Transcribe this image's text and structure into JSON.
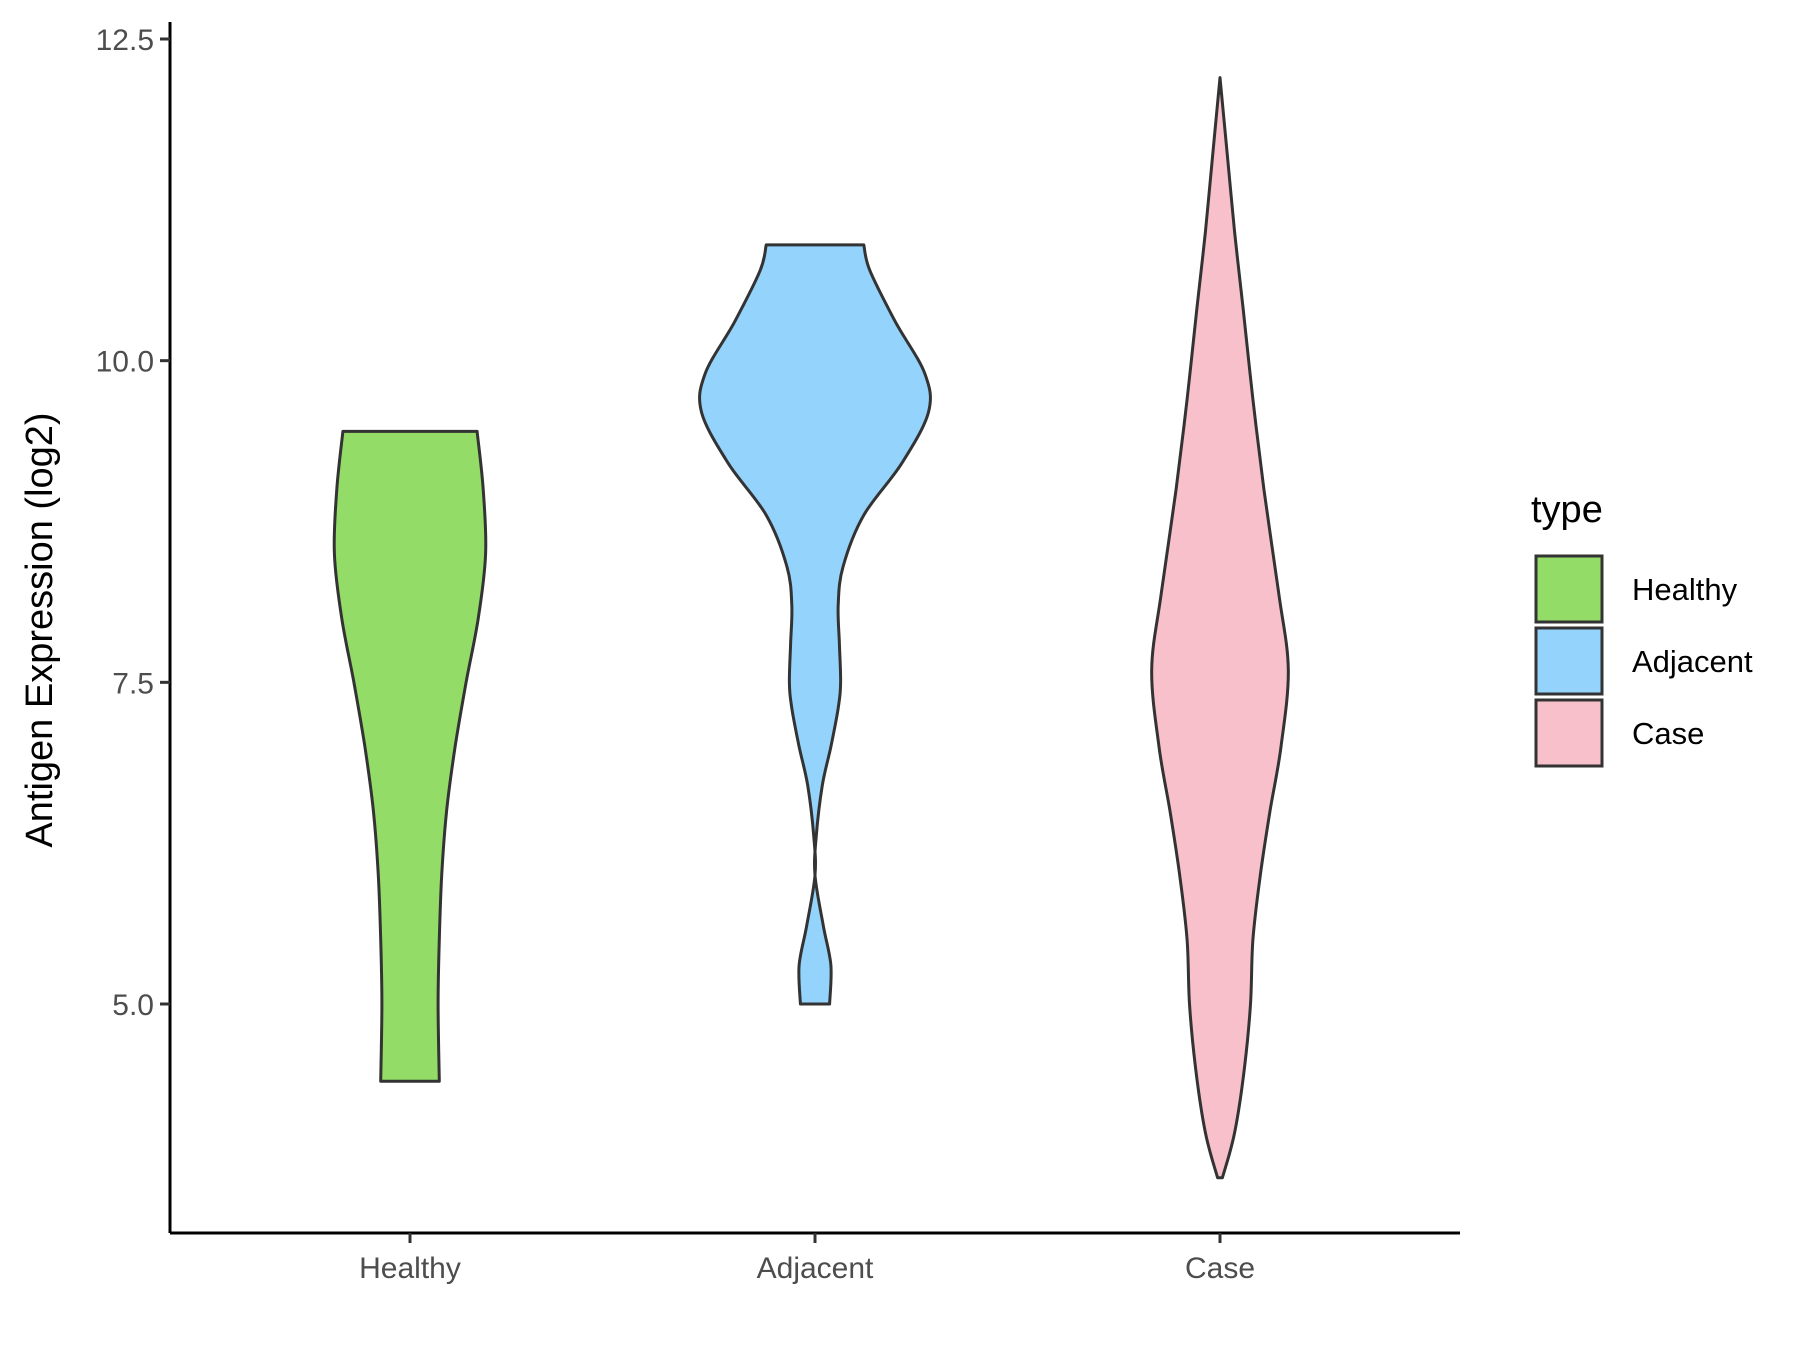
{
  "chart_data": {
    "type": "violin",
    "title": "",
    "xlabel": "",
    "ylabel": "Antigen Expression (log2)",
    "ylim": [
      3.3,
      12.7
    ],
    "yticks": [
      {
        "value": 5.0,
        "label": "5.0"
      },
      {
        "value": 7.5,
        "label": "7.5"
      },
      {
        "value": 10.0,
        "label": "10.0"
      },
      {
        "value": 12.5,
        "label": "12.5"
      }
    ],
    "categories": [
      "Healthy",
      "Adjacent",
      "Case"
    ],
    "grid": false,
    "legend": {
      "title": "type",
      "placement": "right",
      "entries": [
        {
          "label": "Healthy",
          "color": "#93dc67"
        },
        {
          "label": "Adjacent",
          "color": "#93d3fc"
        },
        {
          "label": "Case",
          "color": "#f8c0cb"
        }
      ]
    },
    "outline_color": "#333333",
    "series": [
      {
        "category": "Healthy",
        "color": "#93dc67",
        "min": 4.4,
        "max": 9.45,
        "profile": [
          [
            4.4,
            0.24
          ],
          [
            5.0,
            0.23
          ],
          [
            5.5,
            0.24
          ],
          [
            6.0,
            0.26
          ],
          [
            6.5,
            0.3
          ],
          [
            7.0,
            0.37
          ],
          [
            7.5,
            0.46
          ],
          [
            8.0,
            0.56
          ],
          [
            8.5,
            0.62
          ],
          [
            9.0,
            0.6
          ],
          [
            9.45,
            0.55
          ]
        ]
      },
      {
        "category": "Adjacent",
        "color": "#93d3fc",
        "min": 5.0,
        "max": 10.9,
        "profile": [
          [
            5.0,
            0.12
          ],
          [
            5.3,
            0.13
          ],
          [
            5.6,
            0.07
          ],
          [
            6.0,
            0.0
          ],
          [
            6.3,
            0.01
          ],
          [
            6.7,
            0.06
          ],
          [
            7.0,
            0.13
          ],
          [
            7.3,
            0.19
          ],
          [
            7.5,
            0.21
          ],
          [
            7.8,
            0.2
          ],
          [
            8.1,
            0.19
          ],
          [
            8.4,
            0.23
          ],
          [
            8.8,
            0.4
          ],
          [
            9.2,
            0.71
          ],
          [
            9.6,
            0.93
          ],
          [
            9.9,
            0.9
          ],
          [
            10.3,
            0.66
          ],
          [
            10.7,
            0.45
          ],
          [
            10.9,
            0.4
          ]
        ]
      },
      {
        "category": "Case",
        "color": "#f8c0cb",
        "min": 3.65,
        "max": 12.2,
        "profile": [
          [
            3.65,
            0.02
          ],
          [
            4.0,
            0.12
          ],
          [
            4.5,
            0.2
          ],
          [
            5.0,
            0.25
          ],
          [
            5.5,
            0.27
          ],
          [
            6.0,
            0.33
          ],
          [
            6.5,
            0.41
          ],
          [
            7.0,
            0.5
          ],
          [
            7.6,
            0.56
          ],
          [
            8.2,
            0.48
          ],
          [
            9.0,
            0.36
          ],
          [
            9.7,
            0.27
          ],
          [
            10.4,
            0.19
          ],
          [
            11.0,
            0.12
          ],
          [
            11.6,
            0.06
          ],
          [
            12.2,
            0.0
          ]
        ]
      }
    ]
  }
}
